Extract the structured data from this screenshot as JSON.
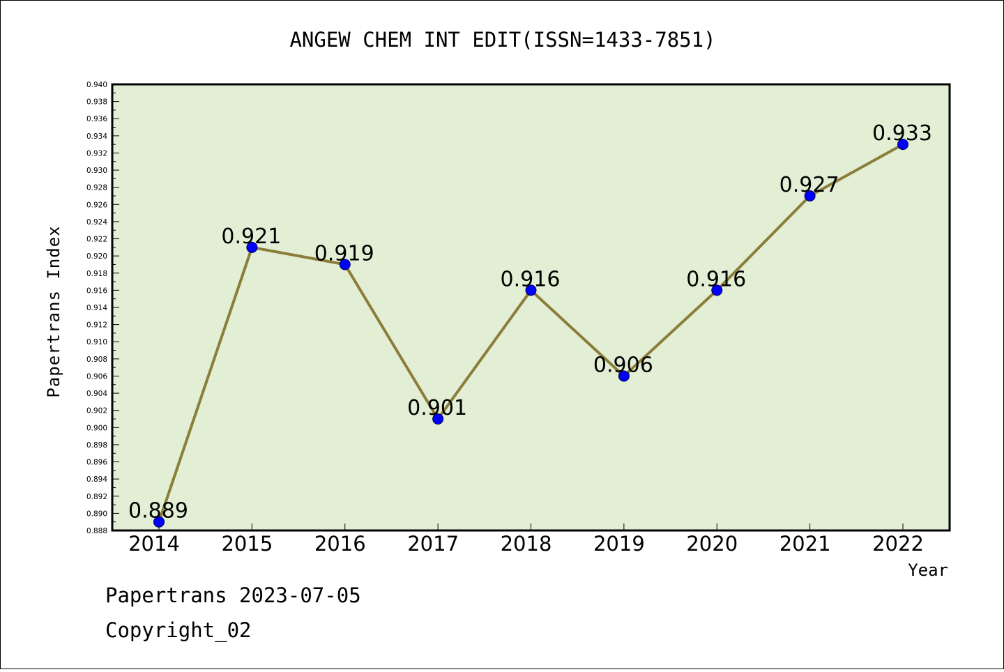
{
  "chart_data": {
    "type": "line",
    "title": "ANGEW CHEM INT EDIT(ISSN=1433-7851)",
    "xlabel": "Year",
    "ylabel": "Papertrans Index",
    "categories": [
      "2014",
      "2015",
      "2016",
      "2017",
      "2018",
      "2019",
      "2020",
      "2021",
      "2022"
    ],
    "series": [
      {
        "values": [
          0.889,
          0.921,
          0.919,
          0.901,
          0.916,
          0.906,
          0.916,
          0.927,
          0.933
        ],
        "labels": [
          "0.889",
          "0.921",
          "0.919",
          "0.901",
          "0.916",
          "0.906",
          "0.916",
          "0.927",
          "0.933"
        ]
      }
    ],
    "ylim": [
      0.888,
      0.94
    ],
    "yticks": [
      "0.888",
      "0.890",
      "0.892",
      "0.894",
      "0.896",
      "0.898",
      "0.900",
      "0.902",
      "0.904",
      "0.906",
      "0.908",
      "0.910",
      "0.912",
      "0.914",
      "0.916",
      "0.918",
      "0.920",
      "0.922",
      "0.924",
      "0.926",
      "0.928",
      "0.930",
      "0.932",
      "0.934",
      "0.936",
      "0.938",
      "0.940"
    ],
    "grid": false,
    "colors": {
      "plot_background": "#e2efd4",
      "line": "#8b7d3a",
      "marker": "#0000ff"
    }
  },
  "footer": {
    "line1": "Papertrans 2023-07-05",
    "line2": "Copyright_02"
  }
}
